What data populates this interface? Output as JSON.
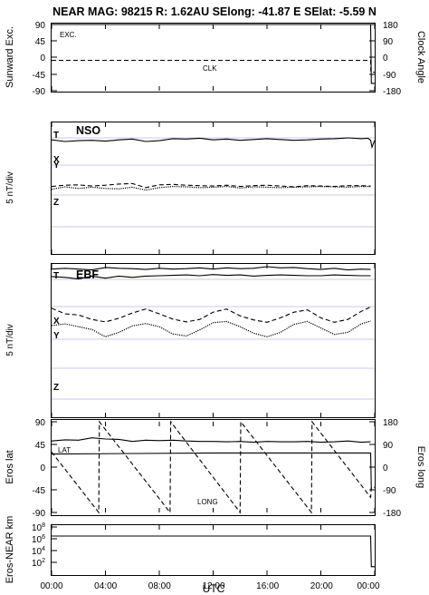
{
  "header": {
    "title": "NEAR MAG: 98215  R: 1.62AU  SElong:  -41.87 E  SElat:  -5.59 N"
  },
  "chart_data": [
    {
      "panel": "sunward",
      "type": "line",
      "ylabel_left": "Sunward Exc.",
      "ylabel_right": "Clock Angle",
      "ylim_left": [
        -90,
        90
      ],
      "ylim_right": [
        -180,
        180
      ],
      "yticks_left": [
        "90",
        "45",
        "0",
        "-45",
        "-90"
      ],
      "yticks_right": [
        "180",
        "90",
        "0",
        "-90",
        "-180"
      ],
      "annotations": [
        "EXC.",
        "CLK"
      ],
      "series": [
        {
          "label": "EXC.",
          "style": "solid",
          "x": [
            0,
            23.7,
            23.75,
            24.0
          ],
          "y": [
            90,
            90,
            -70,
            -70
          ]
        },
        {
          "label": "CLK",
          "style": "dashed",
          "x": [
            0,
            23.7,
            23.72,
            24.0
          ],
          "y": [
            -15,
            -15,
            -80,
            -80
          ]
        }
      ]
    },
    {
      "panel": "NSO",
      "type": "line",
      "label": "NSO",
      "ylabel": "5 nT/div",
      "trace_labels": [
        "T",
        "X",
        "Y",
        "Z"
      ],
      "series": [
        {
          "label": "T",
          "style": "solid",
          "x": [
            0,
            1,
            2,
            3,
            4,
            5,
            6,
            7,
            8,
            9,
            10,
            11,
            12,
            13,
            14,
            15,
            16,
            17,
            18,
            19,
            20,
            21,
            22,
            23,
            23.5,
            23.7,
            23.8,
            24
          ],
          "y": [
            -0.5,
            -0.9,
            -0.7,
            -0.6,
            -0.8,
            -0.5,
            -0.3,
            -0.9,
            -0.7,
            -0.2,
            -0.3,
            -0.1,
            -0.5,
            -0.3,
            -0.6,
            -0.4,
            -0.2,
            -0.4,
            -0.6,
            -0.5,
            -0.3,
            -0.2,
            0.0,
            -0.2,
            -0.1,
            -0.6,
            -2.3,
            -0.6
          ]
        },
        {
          "label": "X",
          "style": "dashed",
          "x": [
            0,
            1,
            2,
            3,
            4,
            5,
            6,
            7,
            8,
            9,
            10,
            11,
            12,
            13,
            14,
            15,
            16,
            17,
            18,
            19,
            20,
            21,
            22,
            23,
            23.7
          ],
          "y": [
            -5.3,
            -5.0,
            -4.9,
            -5.2,
            -5.0,
            -4.7,
            -4.6,
            -5.6,
            -4.9,
            -4.8,
            -5.0,
            -5.1,
            -5.2,
            -5.0,
            -5.3,
            -5.1,
            -5.0,
            -5.2,
            -5.4,
            -5.1,
            -5.2,
            -5.3,
            -5.1,
            -5.1,
            -5.2
          ]
        },
        {
          "label": "Y",
          "style": "dotted",
          "x": [
            0,
            1,
            2,
            3,
            4,
            5,
            6,
            7,
            8,
            9,
            10,
            11,
            12,
            13,
            14,
            15,
            16,
            17,
            18,
            19,
            20,
            21,
            22,
            23,
            23.7
          ],
          "y": [
            -6.0,
            -5.4,
            -5.8,
            -5.5,
            -5.8,
            -5.9,
            -5.5,
            -6.2,
            -5.6,
            -5.3,
            -5.4,
            -5.6,
            -5.5,
            -5.3,
            -5.7,
            -5.4,
            -5.5,
            -5.6,
            -5.5,
            -5.4,
            -5.3,
            -5.4,
            -5.5,
            -5.3,
            -5.3
          ]
        },
        {
          "label": "Z",
          "style": "solid",
          "x": [
            0,
            1,
            2,
            3,
            4,
            5,
            6,
            7,
            8,
            9,
            10,
            11,
            12,
            13,
            14,
            15,
            16,
            17,
            18,
            19,
            20,
            21,
            22,
            23,
            23.7
          ],
          "y": [
            -10.5,
            -10.3,
            -10.5,
            -10.7,
            -10.1,
            -10.3,
            -10.4,
            -10.6,
            -10.3,
            -10.5,
            -10.4,
            -10.2,
            -10.5,
            -10.2,
            -10.4,
            -10.3,
            -9.9,
            -10.2,
            -10.1,
            -10.4,
            -10.6,
            -10.3,
            -10.7,
            -10.5,
            -10.6
          ]
        }
      ]
    },
    {
      "panel": "EBF",
      "type": "line",
      "label": "EBF",
      "ylabel": "5 nT/div",
      "trace_labels": [
        "T",
        "X",
        "Y",
        "Z"
      ],
      "series": [
        {
          "label": "T",
          "style": "solid",
          "x": [
            0,
            1,
            2,
            3,
            4,
            5,
            6,
            7,
            8,
            9,
            10,
            11,
            12,
            13,
            14,
            15,
            16,
            17,
            18,
            19,
            20,
            21,
            22,
            23,
            23.7
          ],
          "y": [
            0.7,
            0.5,
            0.1,
            0.8,
            0.3,
            0.8,
            0.5,
            0.8,
            0.9,
            1.0,
            1.1,
            0.9,
            1.2,
            1.0,
            1.1,
            0.8,
            1.0,
            1.1,
            1.0,
            0.9,
            0.9,
            1.1,
            1.0,
            0.9,
            0.9
          ]
        },
        {
          "label": "X",
          "style": "dashed",
          "x": [
            0,
            1,
            2,
            3,
            4,
            5,
            6,
            7,
            8,
            9,
            10,
            11,
            12,
            13,
            14,
            15,
            16,
            17,
            18,
            19,
            20,
            21,
            22,
            23,
            23.7
          ],
          "y": [
            -0.4,
            -1.8,
            -2.1,
            -3.2,
            -3.8,
            -2.9,
            -1.6,
            -0.6,
            -1.8,
            -3.1,
            -3.8,
            -3.2,
            -1.4,
            -0.6,
            -2.3,
            -3.3,
            -3.9,
            -2.8,
            -1.4,
            -0.8,
            -2.8,
            -3.9,
            -3.2,
            -1.2,
            -0.1
          ]
        },
        {
          "label": "Y",
          "style": "dotted",
          "x": [
            0,
            1,
            2,
            3,
            4,
            5,
            6,
            7,
            8,
            9,
            10,
            11,
            12,
            13,
            14,
            15,
            16,
            17,
            18,
            19,
            20,
            21,
            22,
            23,
            23.7
          ],
          "y": [
            -4.7,
            -4.3,
            -5.0,
            -5.7,
            -7.5,
            -6.4,
            -4.8,
            -4.2,
            -5.0,
            -6.8,
            -7.3,
            -5.8,
            -4.0,
            -3.7,
            -5.0,
            -6.6,
            -7.5,
            -6.4,
            -4.4,
            -3.7,
            -5.3,
            -6.9,
            -6.4,
            -4.3,
            -3.6
          ]
        },
        {
          "label": "Z",
          "style": "solid",
          "x": [
            0,
            1,
            2,
            3,
            4,
            5,
            6,
            7,
            8,
            9,
            10,
            11,
            12,
            13,
            14,
            15,
            16,
            17,
            18,
            19,
            20,
            21,
            22,
            23,
            23.7
          ],
          "y": [
            -10.4,
            -10.1,
            -10.2,
            -9.6,
            -9.9,
            -10.0,
            -10.5,
            -10.2,
            -10.3,
            -10.2,
            -10.4,
            -10.5,
            -10.5,
            -10.6,
            -10.5,
            -10.7,
            -10.5,
            -10.6,
            -10.6,
            -10.5,
            -10.7,
            -10.6,
            -10.4,
            -10.7,
            -10.6
          ]
        }
      ]
    },
    {
      "panel": "eros",
      "type": "line",
      "ylabel_left": "Eros lat",
      "ylabel_right": "Eros long",
      "ylim_left": [
        -90,
        90
      ],
      "ylim_right": [
        -180,
        180
      ],
      "yticks_left": [
        "90",
        "45",
        "0",
        "-45",
        "-90"
      ],
      "yticks_right": [
        "180",
        "90",
        "0",
        "-90",
        "-180"
      ],
      "annotations": [
        "LAT",
        "LONG"
      ],
      "series": [
        {
          "label": "LAT",
          "style": "solid",
          "x": [
            0,
            6,
            12,
            18,
            23.7,
            23.75,
            24.0
          ],
          "y": [
            26,
            27,
            28,
            28,
            28,
            -45,
            -45
          ]
        },
        {
          "label": "LONG",
          "style": "dashed",
          "x": [
            0,
            3.5,
            3.55,
            8.8,
            8.85,
            14.0,
            14.05,
            19.3,
            19.35,
            23.7,
            23.75,
            24.0
          ],
          "y": [
            60,
            -180,
            180,
            -180,
            180,
            -180,
            180,
            -180,
            180,
            -120,
            -80,
            -80
          ]
        }
      ]
    },
    {
      "panel": "distance",
      "type": "line",
      "ylabel": "Eros-NEAR km",
      "yscale": "log",
      "ylim": [
        10,
        100000000
      ],
      "ytick_exponents": [
        "8",
        "6",
        "4",
        "2"
      ],
      "series": [
        {
          "label": "distance",
          "style": "solid",
          "x": [
            0,
            23.7,
            23.75,
            24.0
          ],
          "y": [
            3000000,
            3000000,
            150,
            150
          ]
        }
      ]
    }
  ],
  "axes": {
    "xlabel": "UTC",
    "xlim": [
      0,
      24
    ],
    "xtick_values": [
      0,
      4,
      8,
      12,
      16,
      20,
      24
    ],
    "xtick_labels": [
      "00:00",
      "04:00",
      "08:00",
      "12:00",
      "16:00",
      "20:00",
      "00:00"
    ]
  }
}
